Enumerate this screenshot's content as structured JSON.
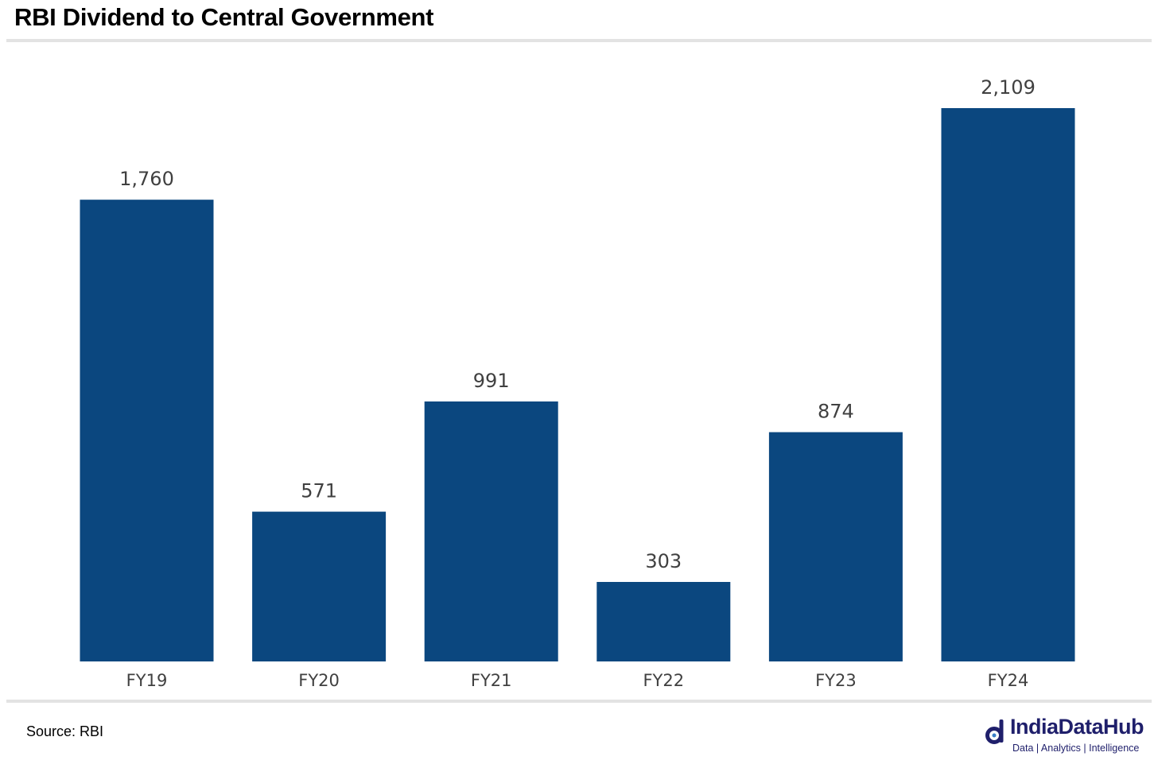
{
  "header": {
    "title": "RBI Dividend to Central Government"
  },
  "footer": {
    "source": "Source: RBI",
    "brand_name": "IndiaDataHub",
    "brand_tagline": "Data | Analytics | Intelligence"
  },
  "colors": {
    "bar": "#0b477f",
    "label": "#404040",
    "rule": "#e3e3e3",
    "brand": "#1f1f6b"
  },
  "chart_data": {
    "type": "bar",
    "title": "RBI Dividend to Central Government",
    "xlabel": "",
    "ylabel": "",
    "categories": [
      "FY19",
      "FY20",
      "FY21",
      "FY22",
      "FY23",
      "FY24"
    ],
    "values": [
      1760,
      571,
      991,
      303,
      874,
      2109
    ],
    "value_labels": [
      "1,760",
      "571",
      "991",
      "303",
      "874",
      "2,109"
    ],
    "ylim": [
      0,
      2109
    ],
    "grid": false,
    "legend": "none"
  }
}
